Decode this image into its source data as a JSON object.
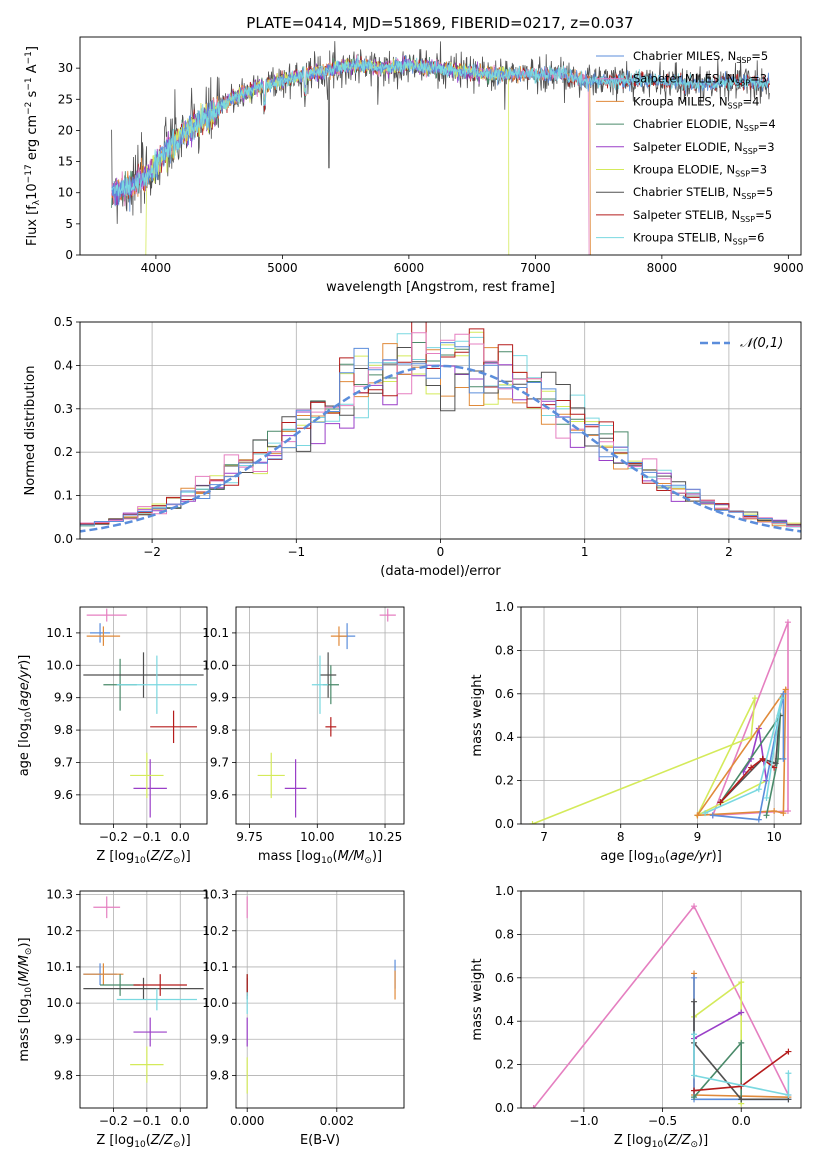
{
  "figure_title": "PLATE=0414, MJD=51869, FIBERID=0217, z=0.037",
  "colors": {
    "chabrier_miles": "#5b8ddb",
    "salpeter_miles": "#e57fc0",
    "kroupa_miles": "#e08a3a",
    "chabrier_elodie": "#4a8a6a",
    "salpeter_elodie": "#9a3fc8",
    "kroupa_elodie": "#d4ea5a",
    "chabrier_stelib": "#505050",
    "salpeter_stelib": "#b51c1c",
    "kroupa_stelib": "#7ad8e0",
    "gaussian": "#5b8ddb"
  },
  "legend_spectrum": [
    {
      "model": "Chabrier MILES",
      "n": "5",
      "color_key": "chabrier_miles"
    },
    {
      "model": "Salpeter MILES",
      "n": "3",
      "color_key": "salpeter_miles"
    },
    {
      "model": "Kroupa MILES",
      "n": "4",
      "color_key": "kroupa_miles"
    },
    {
      "model": "Chabrier ELODIE",
      "n": "4",
      "color_key": "chabrier_elodie"
    },
    {
      "model": "Salpeter ELODIE",
      "n": "3",
      "color_key": "salpeter_elodie"
    },
    {
      "model": "Kroupa ELODIE",
      "n": "3",
      "color_key": "kroupa_elodie"
    },
    {
      "model": "Chabrier STELIB",
      "n": "5",
      "color_key": "chabrier_stelib"
    },
    {
      "model": "Salpeter STELIB",
      "n": "5",
      "color_key": "salpeter_stelib"
    },
    {
      "model": "Kroupa STELIB",
      "n": "6",
      "color_key": "kroupa_stelib"
    }
  ],
  "chart_data": [
    {
      "id": "spectrum",
      "type": "line",
      "title": "PLATE=0414, MJD=51869, FIBERID=0217, z=0.037",
      "xlabel": "wavelength [Angstrom, rest frame]",
      "ylabel": "Flux [f_λ 10^-17 erg cm^-2 s^-1 A^-1]",
      "xlim": [
        3400,
        9100
      ],
      "ylim": [
        0,
        35
      ],
      "xticks": [
        4000,
        5000,
        6000,
        7000,
        8000,
        9000
      ],
      "yticks": [
        0,
        5,
        10,
        15,
        20,
        25,
        30
      ],
      "grid": false,
      "legend": "right",
      "flux_profile": {
        "x": [
          3650,
          3800,
          3950,
          4100,
          4250,
          4400,
          4600,
          4800,
          5000,
          5200,
          5400,
          5600,
          5800,
          6000,
          6200,
          6400,
          6600,
          6800,
          7000,
          7200,
          7400,
          7600,
          7800,
          8000,
          8200,
          8400,
          8600,
          8800
        ],
        "y": [
          10,
          11,
          13,
          17,
          20,
          22,
          25,
          27,
          28,
          29,
          30,
          30.5,
          30,
          30.5,
          30,
          29.5,
          29,
          29,
          29,
          29,
          28,
          28,
          28,
          28,
          27.5,
          27.5,
          28,
          27.5
        ]
      },
      "drops": [
        {
          "series": "Kroupa ELODIE",
          "x": 6790
        },
        {
          "series": "Salpeter MILES/Kroupa MILES",
          "x": 7420
        },
        {
          "series": "Kroupa ELODIE",
          "x": 3920
        }
      ]
    },
    {
      "id": "residual_histogram",
      "type": "bar",
      "xlabel": "(data-model)/error",
      "ylabel": "Normed distribution",
      "xlim": [
        -2.5,
        2.5
      ],
      "ylim": [
        0,
        0.5
      ],
      "xticks": [
        -2,
        -1,
        0,
        1,
        2
      ],
      "yticks": [
        0.0,
        0.1,
        0.2,
        0.3,
        0.4,
        0.5
      ],
      "grid": true,
      "legend": "top-right",
      "legend_label": "𝒩(0,1)",
      "bin_width": 0.1,
      "note": "stepped histograms of all 9 models around a standard normal"
    },
    {
      "id": "age_vs_Z",
      "type": "scatter",
      "xlabel": "Z [log10(Z/Z⊙)]",
      "ylabel": "age  [log10(age/yr)]",
      "xlim": [
        -0.3,
        0.08
      ],
      "ylim": [
        9.51,
        10.18
      ],
      "xticks": [
        -0.2,
        -0.1,
        0.0
      ],
      "yticks": [
        9.6,
        9.7,
        9.8,
        9.9,
        10.0,
        10.1
      ],
      "grid": true,
      "points": [
        {
          "key": "chabrier_miles",
          "x": -0.24,
          "y": 10.1,
          "xerr": 0.03,
          "yerr": 0.03
        },
        {
          "key": "salpeter_miles",
          "x": -0.22,
          "y": 10.155,
          "xerr": 0.06,
          "yerr": 0.02
        },
        {
          "key": "kroupa_miles",
          "x": -0.23,
          "y": 10.09,
          "xerr": 0.05,
          "yerr": 0.03
        },
        {
          "key": "chabrier_elodie",
          "x": -0.18,
          "y": 9.94,
          "xerr": 0.05,
          "yerr": 0.08
        },
        {
          "key": "salpeter_elodie",
          "x": -0.09,
          "y": 9.62,
          "xerr": 0.05,
          "yerr": 0.09
        },
        {
          "key": "kroupa_elodie",
          "x": -0.1,
          "y": 9.66,
          "xerr": 0.05,
          "yerr": 0.07
        },
        {
          "key": "chabrier_stelib",
          "x": -0.11,
          "y": 9.97,
          "xerr": 0.18,
          "yerr": 0.07
        },
        {
          "key": "salpeter_stelib",
          "x": -0.02,
          "y": 9.81,
          "xerr": 0.07,
          "yerr": 0.05
        },
        {
          "key": "kroupa_stelib",
          "x": -0.07,
          "y": 9.94,
          "xerr": 0.12,
          "yerr": 0.09
        }
      ]
    },
    {
      "id": "age_vs_mass",
      "type": "scatter",
      "xlabel": "mass [log10(M/M⊙)]",
      "ylabel": "",
      "xlim": [
        9.7,
        10.32
      ],
      "ylim": [
        9.51,
        10.18
      ],
      "xticks": [
        9.75,
        10.0,
        10.25
      ],
      "yticks": [
        9.6,
        9.7,
        9.8,
        9.9,
        10.0,
        10.1
      ],
      "grid": true,
      "points": [
        {
          "key": "chabrier_miles",
          "x": 10.11,
          "y": 10.09,
          "xerr": 0.03,
          "yerr": 0.04
        },
        {
          "key": "salpeter_miles",
          "x": 10.26,
          "y": 10.155,
          "xerr": 0.03,
          "yerr": 0.02
        },
        {
          "key": "kroupa_miles",
          "x": 10.08,
          "y": 10.09,
          "xerr": 0.03,
          "yerr": 0.03
        },
        {
          "key": "chabrier_elodie",
          "x": 10.05,
          "y": 9.94,
          "xerr": 0.03,
          "yerr": 0.06
        },
        {
          "key": "salpeter_elodie",
          "x": 9.92,
          "y": 9.62,
          "xerr": 0.04,
          "yerr": 0.09
        },
        {
          "key": "kroupa_elodie",
          "x": 9.83,
          "y": 9.66,
          "xerr": 0.05,
          "yerr": 0.07
        },
        {
          "key": "chabrier_stelib",
          "x": 10.04,
          "y": 9.97,
          "xerr": 0.03,
          "yerr": 0.07
        },
        {
          "key": "salpeter_stelib",
          "x": 10.05,
          "y": 9.81,
          "xerr": 0.02,
          "yerr": 0.03
        },
        {
          "key": "kroupa_stelib",
          "x": 10.01,
          "y": 9.94,
          "xerr": 0.03,
          "yerr": 0.09
        }
      ]
    },
    {
      "id": "mass_vs_Z",
      "type": "scatter",
      "xlabel": "Z [log10(Z/Z⊙)]",
      "ylabel": "mass [log10(M/M⊙)]",
      "xlim": [
        -0.3,
        0.08
      ],
      "ylim": [
        9.71,
        10.31
      ],
      "xticks": [
        -0.2,
        -0.1,
        0.0
      ],
      "yticks": [
        9.8,
        9.9,
        10.0,
        10.1,
        10.2,
        10.3
      ],
      "grid": true,
      "points": [
        {
          "key": "chabrier_miles",
          "x": -0.24,
          "y": 10.08,
          "xerr": 0.05,
          "yerr": 0.03
        },
        {
          "key": "salpeter_miles",
          "x": -0.22,
          "y": 10.265,
          "xerr": 0.04,
          "yerr": 0.03
        },
        {
          "key": "kroupa_miles",
          "x": -0.23,
          "y": 10.08,
          "xerr": 0.06,
          "yerr": 0.03
        },
        {
          "key": "chabrier_elodie",
          "x": -0.18,
          "y": 10.05,
          "xerr": 0.06,
          "yerr": 0.03
        },
        {
          "key": "salpeter_elodie",
          "x": -0.09,
          "y": 9.92,
          "xerr": 0.05,
          "yerr": 0.04
        },
        {
          "key": "kroupa_elodie",
          "x": -0.1,
          "y": 9.83,
          "xerr": 0.05,
          "yerr": 0.05
        },
        {
          "key": "chabrier_stelib",
          "x": -0.11,
          "y": 10.04,
          "xerr": 0.18,
          "yerr": 0.03
        },
        {
          "key": "salpeter_stelib",
          "x": -0.06,
          "y": 10.05,
          "xerr": 0.08,
          "yerr": 0.03
        },
        {
          "key": "kroupa_stelib",
          "x": -0.07,
          "y": 10.01,
          "xerr": 0.12,
          "yerr": 0.03
        }
      ]
    },
    {
      "id": "mass_vs_ebv",
      "type": "scatter",
      "xlabel": "E(B-V)",
      "ylabel": "",
      "xlim": [
        -0.00025,
        0.0035
      ],
      "ylim": [
        9.71,
        10.31
      ],
      "xticks": [
        0.0,
        0.002
      ],
      "xticklabels": [
        "0.000",
        "0.002"
      ],
      "yticks": [
        9.8,
        9.9,
        10.0,
        10.1,
        10.2,
        10.3
      ],
      "grid": true,
      "points": [
        {
          "key": "chabrier_miles",
          "x": 0.0033,
          "y": 10.08,
          "xerr": 0,
          "yerr": 0.04
        },
        {
          "key": "salpeter_miles",
          "x": 0.0,
          "y": 10.265,
          "xerr": 0,
          "yerr": 0.03
        },
        {
          "key": "kroupa_miles",
          "x": 0.0033,
          "y": 10.05,
          "xerr": 0,
          "yerr": 0.04
        },
        {
          "key": "chabrier_elodie",
          "x": 0.0,
          "y": 10.05,
          "xerr": 0,
          "yerr": 0.03
        },
        {
          "key": "salpeter_elodie",
          "x": 0.0,
          "y": 9.92,
          "xerr": 0,
          "yerr": 0.04
        },
        {
          "key": "kroupa_elodie",
          "x": 0.0,
          "y": 9.8,
          "xerr": 0,
          "yerr": 0.05
        },
        {
          "key": "chabrier_stelib",
          "x": 0.0,
          "y": 10.04,
          "xerr": 0,
          "yerr": 0.03
        },
        {
          "key": "salpeter_stelib",
          "x": 0.0,
          "y": 10.05,
          "xerr": 0,
          "yerr": 0.03
        },
        {
          "key": "kroupa_stelib",
          "x": 0.0,
          "y": 10.0,
          "xerr": 0,
          "yerr": 0.03
        }
      ]
    },
    {
      "id": "mass_weight_vs_age",
      "type": "line",
      "xlabel": "age  [log10(age/yr)]",
      "ylabel": "mass weight",
      "xlim": [
        6.7,
        10.35
      ],
      "ylim": [
        0,
        1
      ],
      "xticks": [
        7,
        8,
        9,
        10
      ],
      "yticks": [
        0.0,
        0.2,
        0.4,
        0.6,
        0.8,
        1.0
      ],
      "grid": true,
      "series": [
        {
          "key": "salpeter_miles",
          "x": [
            9.2,
            10.18,
            10.18,
            9.2
          ],
          "y": [
            0.04,
            0.93,
            0.06,
            0.04
          ]
        },
        {
          "key": "kroupa_elodie",
          "x": [
            6.85,
            9.7,
            9.75,
            9.0,
            9.9
          ],
          "y": [
            0.0,
            0.4,
            0.58,
            0.04,
            0.2
          ]
        },
        {
          "key": "salpeter_elodie",
          "x": [
            9.6,
            9.7,
            9.8,
            9.9
          ],
          "y": [
            0.24,
            0.3,
            0.44,
            0.2
          ]
        },
        {
          "key": "kroupa_miles",
          "x": [
            9.0,
            10.15,
            10.12,
            10.0,
            9.0
          ],
          "y": [
            0.04,
            0.62,
            0.05,
            0.06,
            0.04
          ]
        },
        {
          "key": "chabrier_miles",
          "x": [
            9.2,
            9.8,
            10.12,
            10.12
          ],
          "y": [
            0.04,
            0.02,
            0.6,
            0.3
          ]
        },
        {
          "key": "chabrier_elodie",
          "x": [
            9.3,
            10.08,
            10.05,
            9.9
          ],
          "y": [
            0.1,
            0.5,
            0.3,
            0.04
          ]
        },
        {
          "key": "chabrier_stelib",
          "x": [
            9.3,
            9.85,
            10.02,
            10.07
          ],
          "y": [
            0.1,
            0.3,
            0.28,
            0.5
          ]
        },
        {
          "key": "salpeter_stelib",
          "x": [
            9.3,
            9.7,
            9.85,
            10.0
          ],
          "y": [
            0.1,
            0.26,
            0.3,
            0.26
          ]
        },
        {
          "key": "kroupa_stelib",
          "x": [
            9.1,
            9.8,
            10.1,
            9.9
          ],
          "y": [
            0.05,
            0.16,
            0.58,
            0.12
          ]
        }
      ]
    },
    {
      "id": "mass_weight_vs_Z",
      "type": "line",
      "xlabel": "Z [log10(Z/Z⊙)]",
      "ylabel": "mass weight",
      "xlim": [
        -1.4,
        0.38
      ],
      "ylim": [
        0,
        1
      ],
      "xticks": [
        -1.0,
        -0.5,
        0.0
      ],
      "yticks": [
        0.0,
        0.2,
        0.4,
        0.6,
        0.8,
        1.0
      ],
      "grid": true,
      "series": [
        {
          "key": "salpeter_miles",
          "x": [
            -1.32,
            -0.3,
            0.3
          ],
          "y": [
            0.0,
            0.93,
            0.06
          ]
        },
        {
          "key": "kroupa_elodie",
          "x": [
            -0.3,
            0.0,
            0.0
          ],
          "y": [
            0.42,
            0.58,
            0.02
          ]
        },
        {
          "key": "salpeter_elodie",
          "x": [
            -0.3,
            0.0
          ],
          "y": [
            0.32,
            0.44
          ]
        },
        {
          "key": "kroupa_miles",
          "x": [
            -0.3,
            -0.3,
            0.3
          ],
          "y": [
            0.62,
            0.06,
            0.05
          ]
        },
        {
          "key": "chabrier_miles",
          "x": [
            -0.3,
            -0.3,
            0.0,
            0.3
          ],
          "y": [
            0.6,
            0.04,
            0.04,
            0.04
          ]
        },
        {
          "key": "chabrier_elodie",
          "x": [
            -0.3,
            0.0,
            0.0
          ],
          "y": [
            0.05,
            0.3,
            0.04
          ]
        },
        {
          "key": "chabrier_stelib",
          "x": [
            -0.3,
            -0.3,
            0.0,
            0.3
          ],
          "y": [
            0.49,
            0.3,
            0.04,
            0.04
          ]
        },
        {
          "key": "salpeter_stelib",
          "x": [
            -0.3,
            0.0,
            0.3
          ],
          "y": [
            0.08,
            0.1,
            0.26
          ]
        },
        {
          "key": "kroupa_stelib",
          "x": [
            -0.3,
            -0.3,
            0.3,
            0.3
          ],
          "y": [
            0.34,
            0.15,
            0.06,
            0.16
          ]
        }
      ]
    }
  ]
}
